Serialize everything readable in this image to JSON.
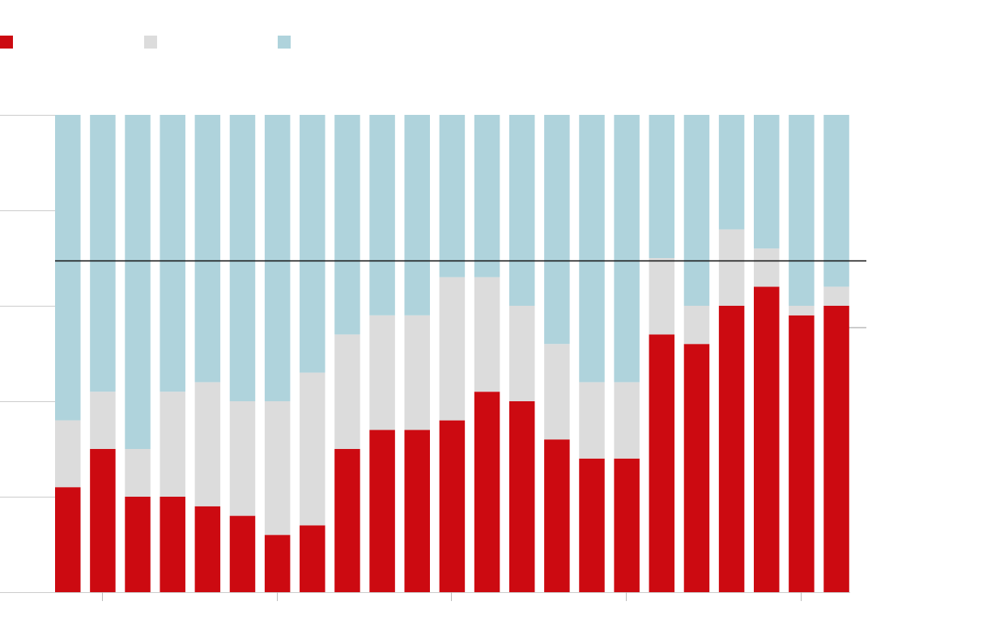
{
  "chart_data": {
    "type": "bar",
    "stacked": true,
    "normalized_to": 100,
    "ylim": [
      0,
      100
    ],
    "grid": true,
    "legend_position": "top-left",
    "reference_line": 69.5,
    "series": [
      {
        "color": "#cc0a11",
        "values": [
          22,
          30,
          20,
          20,
          18,
          16,
          12,
          14,
          30,
          34,
          34,
          36,
          42,
          40,
          32,
          28,
          28,
          54,
          52,
          60,
          64,
          58,
          60
        ]
      },
      {
        "color": "#dcdcdc",
        "values": [
          14,
          12,
          10,
          22,
          26,
          24,
          28,
          32,
          24,
          24,
          24,
          30,
          24,
          20,
          20,
          16,
          16,
          16,
          8,
          16,
          8,
          2,
          4
        ]
      },
      {
        "color": "#afd3dc",
        "values": [
          64,
          58,
          70,
          58,
          56,
          60,
          60,
          54,
          46,
          42,
          42,
          34,
          34,
          40,
          48,
          56,
          56,
          30,
          40,
          24,
          28,
          40,
          36
        ]
      }
    ]
  }
}
